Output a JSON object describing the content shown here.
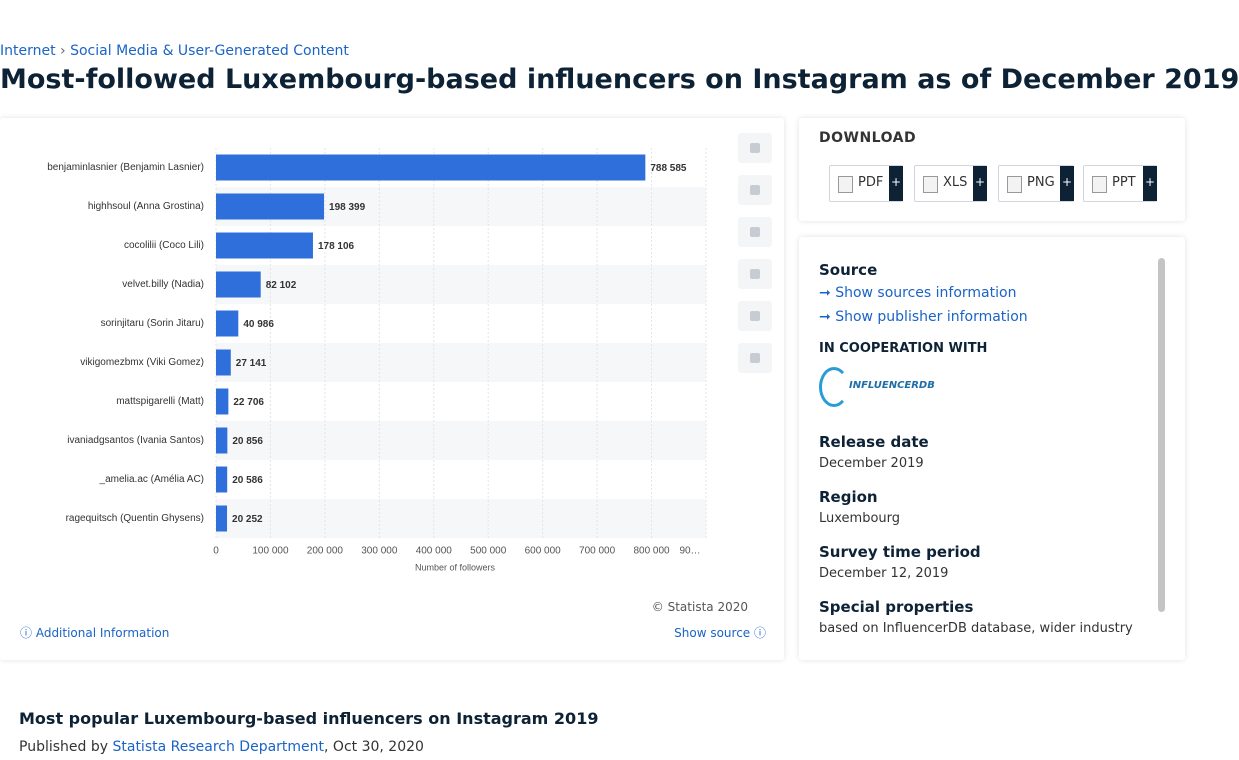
{
  "breadcrumb": {
    "items": [
      "Internet",
      "Social Media & User-Generated Content"
    ],
    "separator": "›"
  },
  "page_title": "Most-followed Luxembourg-based influencers on Instagram as of December 2019",
  "chart_data": {
    "type": "hbar",
    "categories": [
      "benjaminlasnier (Benjamin Lasnier)",
      "highhsoul (Anna Grostina)",
      "cocolilii (Coco Lili)",
      "velvet.billy (Nadia)",
      "sorinjitaru (Sorin Jitaru)",
      "vikigomezbmx (Viki Gomez)",
      "mattspigarelli (Matt)",
      "ivaniadgsantos (Ivania Santos)",
      "_amelia.ac (Amélia AC)",
      "ragequitsch (Quentin Ghysens)"
    ],
    "values": [
      788585,
      198399,
      178106,
      82102,
      40986,
      27141,
      22706,
      20856,
      20586,
      20252
    ],
    "value_labels": [
      "788 585",
      "198 399",
      "178 106",
      "82 102",
      "40 986",
      "27 141",
      "22 706",
      "20 856",
      "20 586",
      "20 252"
    ],
    "color": "#2f6fdc",
    "xlim": [
      0,
      900000
    ],
    "xticks": [
      0,
      {
        "value": 100000,
        "label": "100 000"
      },
      {
        "value": 200000,
        "label": "200 000"
      },
      {
        "value": 300000,
        "label": "300 000"
      },
      {
        "value": 400000,
        "label": "400 000"
      },
      {
        "value": 500000,
        "label": "500 000"
      },
      {
        "value": 600000,
        "label": "600 000"
      },
      {
        "value": 700000,
        "label": "700 000"
      },
      {
        "value": 800000,
        "label": "800 000"
      },
      {
        "value": 900000,
        "label": "90…"
      }
    ],
    "x_label": "Number of followers",
    "grid": true,
    "copyright": "© Statista 2020"
  },
  "chart_footer": {
    "additional_info": "Additional Information",
    "show_source": "Show source"
  },
  "download": {
    "title": "DOWNLOAD",
    "buttons": [
      "PDF",
      "XLS",
      "PNG",
      "PPT"
    ],
    "plus": "+"
  },
  "details": {
    "source_title": "Source",
    "show_sources": "Show sources information",
    "show_publisher": "Show publisher information",
    "cooperation": "IN COOPERATION WITH",
    "logo": "INFLUENCERDB",
    "release_date_label": "Release date",
    "release_date": "December 2019",
    "region_label": "Region",
    "region": "Luxembourg",
    "survey_label": "Survey time period",
    "survey": "December 12, 2019",
    "special_label": "Special properties",
    "special": "based on InfluencerDB database, wider industry"
  },
  "article": {
    "title": "Most popular Luxembourg-based influencers on Instagram 2019",
    "published_by": "Published by",
    "author": "Statista Research Department",
    "separator": ",",
    "date": "Oct 30, 2020"
  }
}
